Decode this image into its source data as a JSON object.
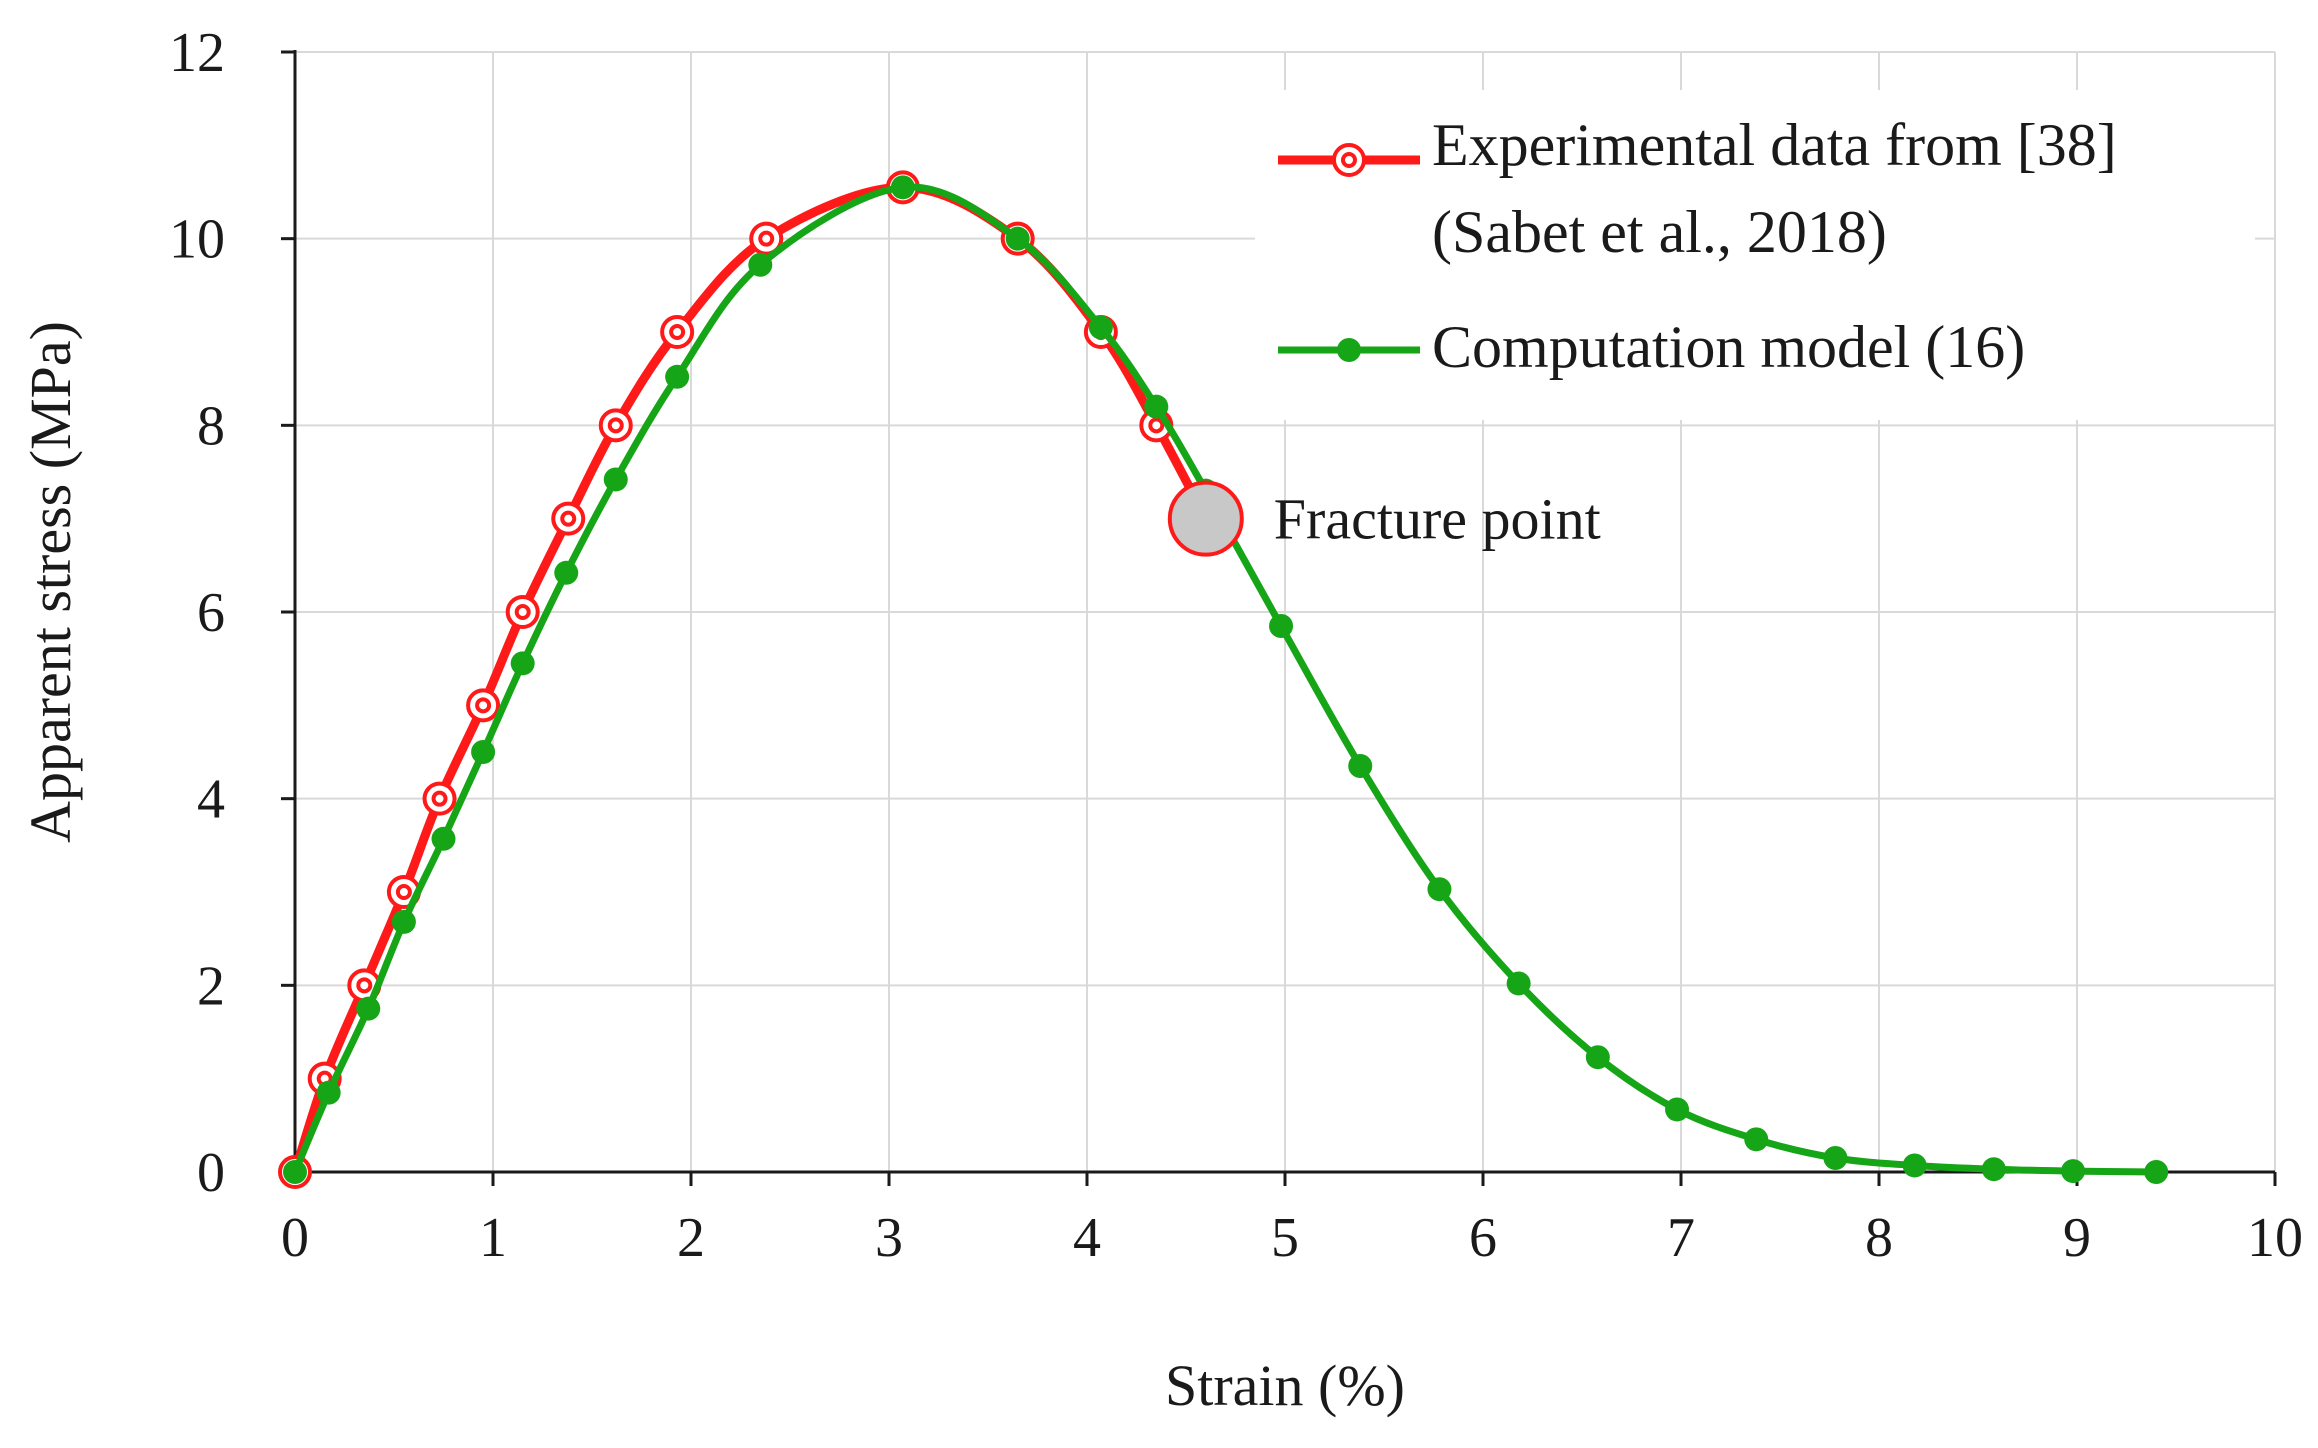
{
  "chart_data": {
    "type": "line",
    "title": "",
    "xlabel": "Strain (%)",
    "ylabel": "Apparent stress (MPa)",
    "xlim": [
      0,
      10
    ],
    "ylim": [
      0,
      12
    ],
    "xticks": [
      0,
      1,
      2,
      3,
      4,
      5,
      6,
      7,
      8,
      9,
      10
    ],
    "yticks": [
      0,
      2,
      4,
      6,
      8,
      10,
      12
    ],
    "grid": true,
    "legend_position": "top-right",
    "series": [
      {
        "name": "Experimental data from [38] (Sabet et al., 2018)",
        "legend_lines": [
          "Experimental data from [38]",
          "(Sabet et al., 2018)"
        ],
        "color": "#ff1a1a",
        "marker": "double-circle",
        "x": [
          0,
          0.15,
          0.35,
          0.55,
          0.73,
          0.95,
          1.15,
          1.38,
          1.62,
          1.93,
          2.38,
          3.07,
          3.65,
          4.07,
          4.35,
          4.6
        ],
        "y": [
          0,
          1,
          2,
          3,
          4,
          5,
          6,
          7,
          8,
          9,
          10,
          10.55,
          10,
          9,
          8,
          7
        ]
      },
      {
        "name": "Computation  model (16)",
        "legend_lines": [
          "Computation  model (16)"
        ],
        "color": "#16a516",
        "marker": "dot",
        "x": [
          0,
          0.17,
          0.37,
          0.55,
          0.75,
          0.95,
          1.15,
          1.37,
          1.62,
          1.93,
          2.35,
          3.07,
          3.65,
          4.07,
          4.35,
          4.6,
          4.98,
          5.38,
          5.78,
          6.18,
          6.58,
          6.98,
          7.38,
          7.78,
          8.18,
          8.58,
          8.98,
          9.4
        ],
        "y": [
          0,
          0.85,
          1.75,
          2.68,
          3.57,
          4.5,
          5.45,
          6.42,
          7.42,
          8.52,
          9.72,
          10.55,
          10.0,
          9.05,
          8.2,
          7.3,
          5.85,
          4.35,
          3.03,
          2.02,
          1.23,
          0.67,
          0.35,
          0.15,
          0.07,
          0.03,
          0.01,
          0.0
        ]
      }
    ],
    "annotations": [
      {
        "label": "Fracture point",
        "x": 4.6,
        "y": 7.0
      }
    ]
  },
  "colors": {
    "experimental": "#ff1a1a",
    "model": "#16a516",
    "fracture_fill": "#c8c8c8",
    "grid": "#d9d9d9",
    "axis": "#1a1a1a"
  }
}
